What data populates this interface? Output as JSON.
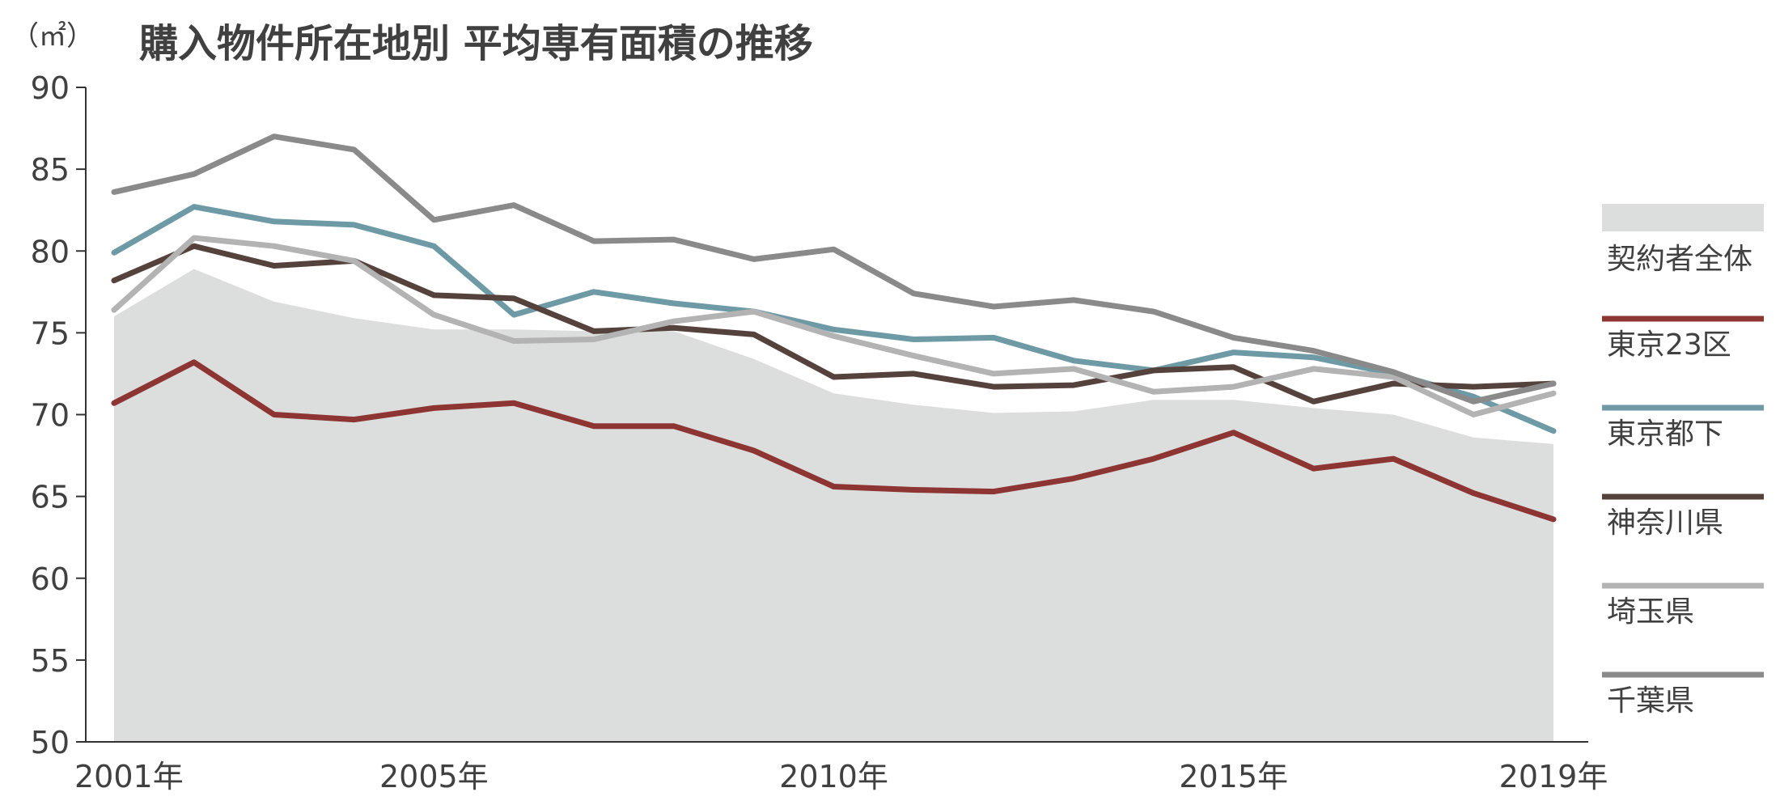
{
  "chart_data": {
    "type": "line",
    "title": "購入物件所在地別 平均専有面積の推移",
    "unit_label": "（㎡）",
    "ylim": [
      50,
      90
    ],
    "yticks": [
      50,
      55,
      60,
      65,
      70,
      75,
      80,
      85,
      90
    ],
    "x": [
      2001,
      2002,
      2003,
      2004,
      2005,
      2006,
      2007,
      2008,
      2009,
      2010,
      2011,
      2012,
      2013,
      2014,
      2015,
      2016,
      2017,
      2018,
      2019
    ],
    "xtick_labels": [
      {
        "x": 2001,
        "label": "2001年"
      },
      {
        "x": 2005,
        "label": "2005年"
      },
      {
        "x": 2010,
        "label": "2010年"
      },
      {
        "x": 2015,
        "label": "2015年"
      },
      {
        "x": 2019,
        "label": "2019年"
      }
    ],
    "grid": false,
    "legend_position": "right",
    "area": {
      "name": "契約者全体",
      "color": "#dcdddd",
      "values": [
        76.0,
        78.9,
        76.9,
        75.9,
        75.2,
        75.2,
        75.1,
        75.1,
        73.4,
        71.3,
        70.6,
        70.1,
        70.2,
        70.9,
        70.9,
        70.4,
        70.0,
        68.6,
        68.2
      ]
    },
    "series": [
      {
        "name": "東京23区",
        "color": "#8c3532",
        "values": [
          70.7,
          73.2,
          70.0,
          69.7,
          70.4,
          70.7,
          69.3,
          69.3,
          67.8,
          65.6,
          65.4,
          65.3,
          66.1,
          67.3,
          68.9,
          66.7,
          67.3,
          65.2,
          63.6
        ]
      },
      {
        "name": "東京都下",
        "color": "#6e9aa5",
        "values": [
          79.9,
          82.7,
          81.8,
          81.6,
          80.3,
          76.1,
          77.5,
          76.8,
          76.3,
          75.2,
          74.6,
          74.7,
          73.3,
          72.7,
          73.8,
          73.5,
          72.5,
          71.1,
          69.0
        ]
      },
      {
        "name": "神奈川県",
        "color": "#55423c",
        "values": [
          78.2,
          80.3,
          79.1,
          79.4,
          77.3,
          77.1,
          75.1,
          75.3,
          74.9,
          72.3,
          72.5,
          71.7,
          71.8,
          72.7,
          72.9,
          70.8,
          71.9,
          71.7,
          71.9
        ]
      },
      {
        "name": "埼玉県",
        "color": "#b3b3b3",
        "values": [
          76.4,
          80.8,
          80.3,
          79.4,
          76.1,
          74.5,
          74.6,
          75.7,
          76.3,
          74.8,
          73.6,
          72.5,
          72.8,
          71.4,
          71.7,
          72.8,
          72.3,
          70.0,
          71.3
        ]
      },
      {
        "name": "千葉県",
        "color": "#8a8a8a",
        "values": [
          83.6,
          84.7,
          87.0,
          86.2,
          81.9,
          82.8,
          80.6,
          80.7,
          79.5,
          80.1,
          77.4,
          76.6,
          77.0,
          76.3,
          74.7,
          73.9,
          72.6,
          70.8,
          71.9
        ]
      }
    ]
  }
}
